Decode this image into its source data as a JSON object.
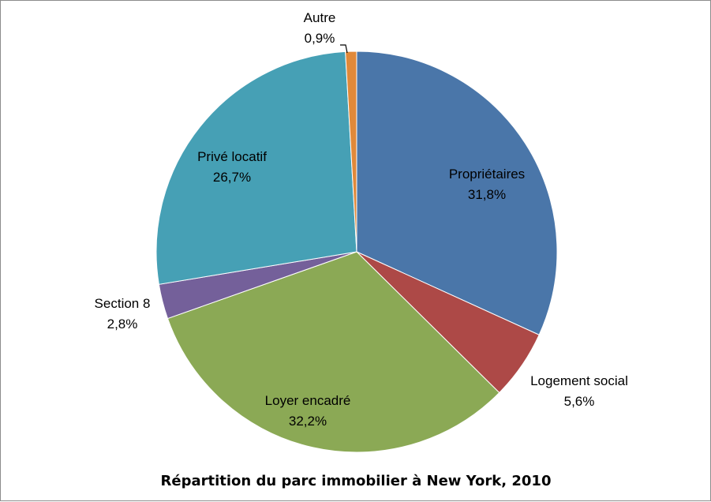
{
  "chart_data": {
    "type": "pie",
    "title": "Répartition du parc immobilier à New York, 2010",
    "start_angle_deg": 0,
    "direction": "clockwise",
    "legend": "none",
    "slices": [
      {
        "label": "Propriétaires",
        "value_text": "31,8%",
        "value": 31.8,
        "color": "#4a76a9"
      },
      {
        "label": "Logement social",
        "value_text": "5,6%",
        "value": 5.6,
        "color": "#ad4947"
      },
      {
        "label": "Loyer encadré",
        "value_text": "32,2%",
        "value": 32.2,
        "color": "#8ba955"
      },
      {
        "label": "Section 8",
        "value_text": "2,8%",
        "value": 2.8,
        "color": "#74609a"
      },
      {
        "label": "Privé locatif",
        "value_text": "26,7%",
        "value": 26.7,
        "color": "#46a0b5"
      },
      {
        "label": "Autre",
        "value_text": "0,9%",
        "value": 0.9,
        "color": "#e0893a"
      }
    ]
  }
}
